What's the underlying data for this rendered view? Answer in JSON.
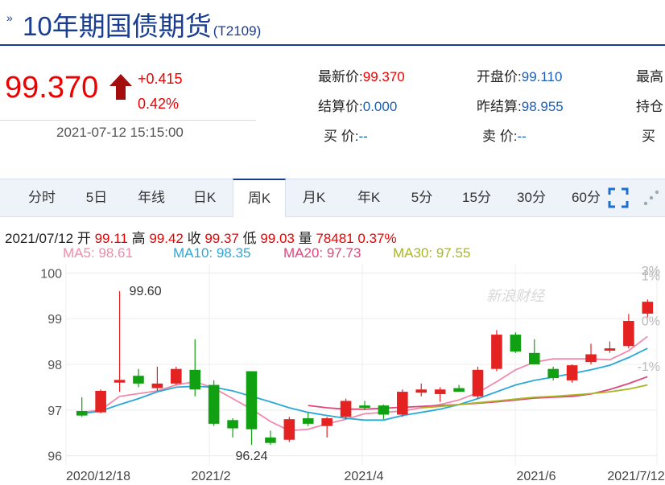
{
  "header": {
    "title": "10年期国债期货",
    "code": "(T2109)"
  },
  "quote": {
    "price": "99.370",
    "change": "+0.415",
    "change_pct": "0.42%",
    "datetime": "2021-07-12 15:15:00",
    "fields": [
      {
        "label": "最新价:",
        "value": "99.370"
      },
      {
        "label": "开盘价:",
        "value": "99.110"
      },
      {
        "label": "最高",
        "value": ""
      },
      {
        "label": "结算价:",
        "value": "0.000"
      },
      {
        "label": "昨结算:",
        "value": "98.955"
      },
      {
        "label": "持仓",
        "value": ""
      },
      {
        "label": "买 价:",
        "value": "--"
      },
      {
        "label": "卖 价:",
        "value": "--"
      },
      {
        "label": "买",
        "value": ""
      }
    ]
  },
  "tabs": [
    "分时",
    "5日",
    "年线",
    "日K",
    "周K",
    "月K",
    "年K",
    "5分",
    "15分",
    "30分",
    "60分"
  ],
  "active_tab": "周K",
  "ohlc_bar": {
    "date": "2021/07/12",
    "open_label": "开",
    "open": "99.11",
    "high_label": "高",
    "high": "99.42",
    "close_label": "收",
    "close": "99.37",
    "low_label": "低",
    "low": "99.03",
    "vol_label": "量",
    "vol": "78481",
    "pct": "0.37%"
  },
  "ma_legend": [
    {
      "label": "MA5: 98.61",
      "color": "#f08aa8"
    },
    {
      "label": "MA10: 98.35",
      "color": "#2aa8d8"
    },
    {
      "label": "MA20: 97.73",
      "color": "#e0457a"
    },
    {
      "label": "MA30: 97.55",
      "color": "#a8b820"
    }
  ],
  "watermark": "新浪财经",
  "chart_data": {
    "type": "candlestick",
    "yticks": [
      96,
      97,
      98,
      99,
      100
    ],
    "ylim": [
      95.8,
      100.2
    ],
    "pct_ticks": [
      "3%",
      "2%",
      "1%",
      "0%",
      "-1%"
    ],
    "x_labels": [
      "2020/12/18",
      "2021/2",
      "2021/4",
      "2021/6",
      "2021/7/12"
    ],
    "annotations": [
      {
        "text": "99.60",
        "value": 99.6
      },
      {
        "text": "96.24",
        "value": 96.24
      }
    ],
    "candles": [
      {
        "o": 96.98,
        "h": 97.28,
        "l": 96.85,
        "c": 96.88
      },
      {
        "o": 96.95,
        "h": 97.45,
        "l": 96.93,
        "c": 97.42
      },
      {
        "o": 97.6,
        "h": 99.6,
        "l": 97.4,
        "c": 97.66
      },
      {
        "o": 97.75,
        "h": 97.9,
        "l": 97.5,
        "c": 97.58
      },
      {
        "o": 97.48,
        "h": 97.95,
        "l": 97.42,
        "c": 97.58
      },
      {
        "o": 97.58,
        "h": 97.95,
        "l": 97.55,
        "c": 97.9
      },
      {
        "o": 97.88,
        "h": 98.55,
        "l": 97.3,
        "c": 97.45
      },
      {
        "o": 97.55,
        "h": 97.65,
        "l": 96.65,
        "c": 96.7
      },
      {
        "o": 96.78,
        "h": 96.82,
        "l": 96.4,
        "c": 96.6
      },
      {
        "o": 97.85,
        "h": 97.85,
        "l": 96.24,
        "c": 96.58
      },
      {
        "o": 96.4,
        "h": 96.55,
        "l": 96.24,
        "c": 96.28
      },
      {
        "o": 96.35,
        "h": 96.85,
        "l": 96.3,
        "c": 96.8
      },
      {
        "o": 96.82,
        "h": 96.95,
        "l": 96.65,
        "c": 96.7
      },
      {
        "o": 96.65,
        "h": 96.85,
        "l": 96.4,
        "c": 96.82
      },
      {
        "o": 96.85,
        "h": 97.25,
        "l": 96.8,
        "c": 97.2
      },
      {
        "o": 97.1,
        "h": 97.2,
        "l": 97.0,
        "c": 97.05
      },
      {
        "o": 97.1,
        "h": 97.12,
        "l": 96.8,
        "c": 96.9
      },
      {
        "o": 96.9,
        "h": 97.45,
        "l": 96.85,
        "c": 97.4
      },
      {
        "o": 97.38,
        "h": 97.58,
        "l": 97.3,
        "c": 97.45
      },
      {
        "o": 97.35,
        "h": 97.5,
        "l": 97.18,
        "c": 97.45
      },
      {
        "o": 97.48,
        "h": 97.55,
        "l": 97.4,
        "c": 97.4
      },
      {
        "o": 97.3,
        "h": 97.95,
        "l": 97.25,
        "c": 97.88
      },
      {
        "o": 97.9,
        "h": 98.75,
        "l": 97.85,
        "c": 98.65
      },
      {
        "o": 98.65,
        "h": 98.7,
        "l": 98.25,
        "c": 98.28
      },
      {
        "o": 98.25,
        "h": 98.55,
        "l": 98.0,
        "c": 98.0
      },
      {
        "o": 97.9,
        "h": 97.95,
        "l": 97.65,
        "c": 97.7
      },
      {
        "o": 97.65,
        "h": 98.0,
        "l": 97.6,
        "c": 97.98
      },
      {
        "o": 98.05,
        "h": 98.45,
        "l": 98.0,
        "c": 98.22
      },
      {
        "o": 98.3,
        "h": 98.5,
        "l": 98.25,
        "c": 98.35
      },
      {
        "o": 98.4,
        "h": 99.1,
        "l": 98.35,
        "c": 98.95
      },
      {
        "o": 99.11,
        "h": 99.42,
        "l": 99.03,
        "c": 99.37
      }
    ],
    "ma_series": [
      {
        "name": "MA5",
        "color": "#f08aa8",
        "values": [
          96.95,
          97.0,
          97.3,
          97.36,
          97.42,
          97.55,
          97.62,
          97.48,
          97.25,
          97.02,
          96.75,
          96.55,
          96.58,
          96.7,
          96.8,
          96.92,
          96.95,
          96.98,
          97.05,
          97.12,
          97.22,
          97.38,
          97.62,
          97.88,
          98.05,
          98.12,
          98.12,
          98.12,
          98.1,
          98.3,
          98.61
        ]
      },
      {
        "name": "MA10",
        "color": "#2aa8d8",
        "values": [
          96.92,
          96.98,
          97.12,
          97.25,
          97.4,
          97.5,
          97.52,
          97.5,
          97.42,
          97.3,
          97.18,
          97.05,
          96.95,
          96.88,
          96.82,
          96.78,
          96.78,
          96.88,
          96.95,
          97.02,
          97.12,
          97.25,
          97.4,
          97.55,
          97.65,
          97.72,
          97.8,
          97.88,
          97.98,
          98.15,
          98.35
        ]
      },
      {
        "name": "MA20",
        "color": "#e0457a",
        "values": [
          null,
          null,
          null,
          null,
          null,
          null,
          null,
          null,
          null,
          null,
          null,
          null,
          97.1,
          97.05,
          97.02,
          97.02,
          97.04,
          97.06,
          97.08,
          97.1,
          97.12,
          97.15,
          97.18,
          97.22,
          97.26,
          97.28,
          97.3,
          97.35,
          97.45,
          97.58,
          97.73
        ]
      },
      {
        "name": "MA30",
        "color": "#a8b820",
        "values": [
          null,
          null,
          null,
          null,
          null,
          null,
          null,
          null,
          null,
          null,
          null,
          null,
          null,
          null,
          null,
          null,
          null,
          null,
          97.05,
          97.08,
          97.12,
          97.16,
          97.2,
          97.24,
          97.28,
          97.3,
          97.33,
          97.36,
          97.4,
          97.46,
          97.55
        ]
      }
    ],
    "up_color": "#e42222",
    "down_color": "#11a011"
  }
}
